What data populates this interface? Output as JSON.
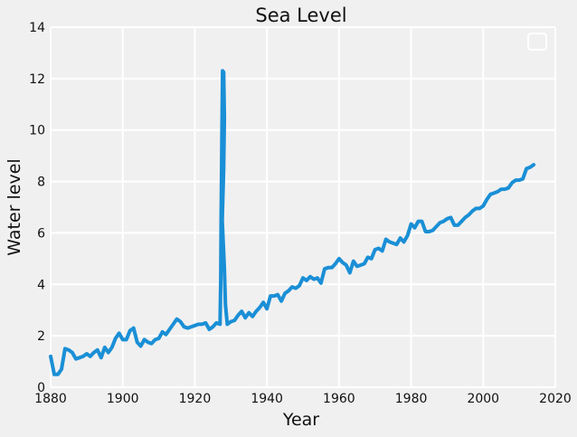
{
  "chart_data": {
    "type": "line",
    "title": "Sea Level",
    "xlabel": "Year",
    "ylabel": "Water level",
    "xlim": [
      1880,
      2020
    ],
    "ylim": [
      0,
      14
    ],
    "xticks": [
      "1880",
      "1900",
      "1920",
      "1940",
      "1960",
      "1980",
      "2000",
      "2020"
    ],
    "yticks": [
      "0",
      "2",
      "4",
      "6",
      "8",
      "10",
      "12",
      "14"
    ],
    "grid": true,
    "legend": "top-right",
    "series": [
      {
        "color": "#1a8fd6",
        "points": [
          [
            1880,
            1.2
          ],
          [
            1881,
            0.5
          ],
          [
            1882,
            0.5
          ],
          [
            1883,
            0.7
          ],
          [
            1884,
            1.5
          ],
          [
            1885,
            1.45
          ],
          [
            1886,
            1.35
          ],
          [
            1887,
            1.1
          ],
          [
            1888,
            1.15
          ],
          [
            1889,
            1.2
          ],
          [
            1890,
            1.3
          ],
          [
            1891,
            1.2
          ],
          [
            1892,
            1.35
          ],
          [
            1893,
            1.45
          ],
          [
            1894,
            1.15
          ],
          [
            1895,
            1.55
          ],
          [
            1896,
            1.35
          ],
          [
            1897,
            1.55
          ],
          [
            1898,
            1.9
          ],
          [
            1899,
            2.1
          ],
          [
            1900,
            1.85
          ],
          [
            1901,
            1.85
          ],
          [
            1902,
            2.2
          ],
          [
            1903,
            2.3
          ],
          [
            1904,
            1.75
          ],
          [
            1905,
            1.6
          ],
          [
            1906,
            1.85
          ],
          [
            1907,
            1.75
          ],
          [
            1908,
            1.7
          ],
          [
            1909,
            1.85
          ],
          [
            1910,
            1.9
          ],
          [
            1911,
            2.15
          ],
          [
            1912,
            2.05
          ],
          [
            1913,
            2.25
          ],
          [
            1914,
            2.45
          ],
          [
            1915,
            2.65
          ],
          [
            1916,
            2.55
          ],
          [
            1917,
            2.35
          ],
          [
            1918,
            2.3
          ],
          [
            1919,
            2.35
          ],
          [
            1920,
            2.4
          ],
          [
            1921,
            2.45
          ],
          [
            1922,
            2.45
          ],
          [
            1923,
            2.5
          ],
          [
            1924,
            2.25
          ],
          [
            1925,
            2.35
          ],
          [
            1926,
            2.5
          ],
          [
            1927,
            2.45
          ],
          [
            1927.2,
            4.2
          ],
          [
            1927.3,
            6.5
          ],
          [
            1927.5,
            9.5
          ],
          [
            1927.7,
            12.3
          ],
          [
            1928,
            12.25
          ],
          [
            1928.2,
            10.5
          ],
          [
            1928,
            8.5
          ],
          [
            1927.6,
            6.5
          ],
          [
            1928.2,
            4.6
          ],
          [
            1928.5,
            3.2
          ],
          [
            1929,
            2.45
          ],
          [
            1930,
            2.55
          ],
          [
            1931,
            2.6
          ],
          [
            1932,
            2.8
          ],
          [
            1933,
            2.95
          ],
          [
            1934,
            2.7
          ],
          [
            1935,
            2.9
          ],
          [
            1936,
            2.75
          ],
          [
            1937,
            2.95
          ],
          [
            1938,
            3.1
          ],
          [
            1939,
            3.3
          ],
          [
            1940,
            3.05
          ],
          [
            1941,
            3.55
          ],
          [
            1942,
            3.55
          ],
          [
            1943,
            3.6
          ],
          [
            1944,
            3.35
          ],
          [
            1945,
            3.65
          ],
          [
            1946,
            3.75
          ],
          [
            1947,
            3.9
          ],
          [
            1948,
            3.85
          ],
          [
            1949,
            3.95
          ],
          [
            1950,
            4.25
          ],
          [
            1951,
            4.15
          ],
          [
            1952,
            4.3
          ],
          [
            1953,
            4.2
          ],
          [
            1954,
            4.25
          ],
          [
            1955,
            4.05
          ],
          [
            1956,
            4.6
          ],
          [
            1957,
            4.65
          ],
          [
            1958,
            4.65
          ],
          [
            1959,
            4.8
          ],
          [
            1960,
            5.0
          ],
          [
            1961,
            4.85
          ],
          [
            1962,
            4.75
          ],
          [
            1963,
            4.45
          ],
          [
            1964,
            4.9
          ],
          [
            1965,
            4.7
          ],
          [
            1966,
            4.75
          ],
          [
            1967,
            4.8
          ],
          [
            1968,
            5.05
          ],
          [
            1969,
            5.0
          ],
          [
            1970,
            5.35
          ],
          [
            1971,
            5.4
          ],
          [
            1972,
            5.3
          ],
          [
            1973,
            5.75
          ],
          [
            1974,
            5.65
          ],
          [
            1975,
            5.6
          ],
          [
            1976,
            5.55
          ],
          [
            1977,
            5.8
          ],
          [
            1978,
            5.65
          ],
          [
            1979,
            5.9
          ],
          [
            1980,
            6.35
          ],
          [
            1981,
            6.2
          ],
          [
            1982,
            6.45
          ],
          [
            1983,
            6.45
          ],
          [
            1984,
            6.05
          ],
          [
            1985,
            6.05
          ],
          [
            1986,
            6.1
          ],
          [
            1987,
            6.25
          ],
          [
            1988,
            6.4
          ],
          [
            1989,
            6.45
          ],
          [
            1990,
            6.55
          ],
          [
            1991,
            6.6
          ],
          [
            1992,
            6.3
          ],
          [
            1993,
            6.3
          ],
          [
            1994,
            6.45
          ],
          [
            1995,
            6.6
          ],
          [
            1996,
            6.7
          ],
          [
            1997,
            6.85
          ],
          [
            1998,
            6.95
          ],
          [
            1999,
            6.95
          ],
          [
            2000,
            7.05
          ],
          [
            2001,
            7.3
          ],
          [
            2002,
            7.5
          ],
          [
            2003,
            7.55
          ],
          [
            2004,
            7.6
          ],
          [
            2005,
            7.7
          ],
          [
            2006,
            7.7
          ],
          [
            2007,
            7.75
          ],
          [
            2008,
            7.95
          ],
          [
            2009,
            8.05
          ],
          [
            2010,
            8.05
          ],
          [
            2011,
            8.1
          ],
          [
            2012,
            8.5
          ],
          [
            2013,
            8.55
          ],
          [
            2014,
            8.65
          ]
        ]
      }
    ]
  }
}
